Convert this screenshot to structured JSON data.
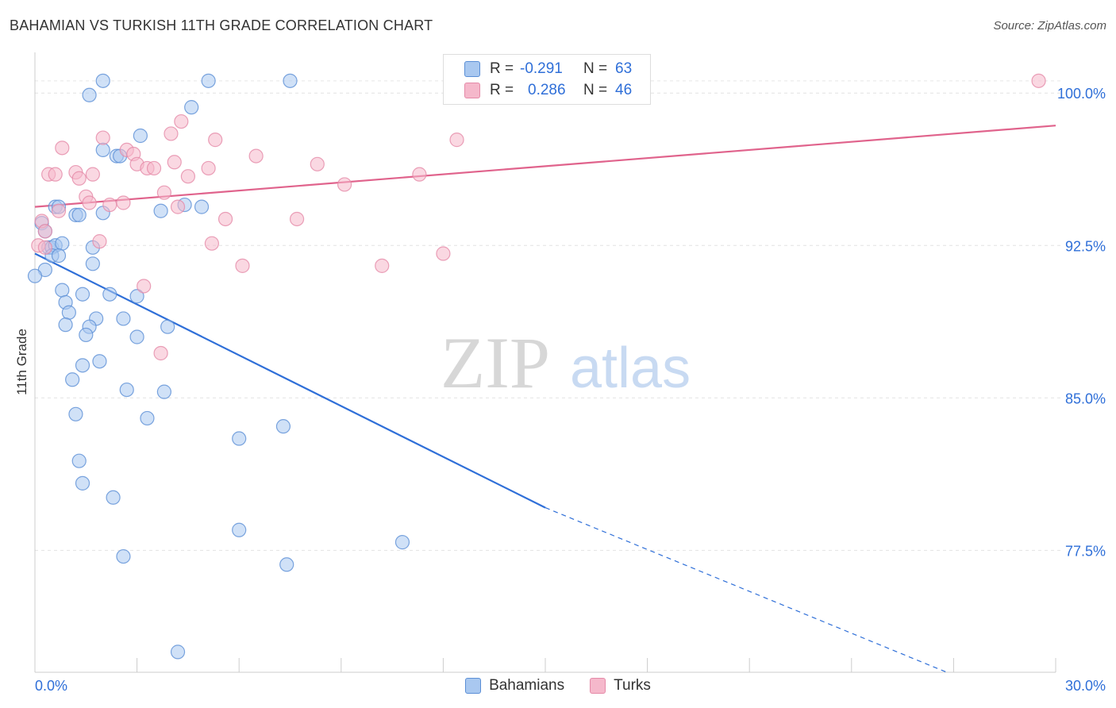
{
  "title": "BAHAMIAN VS TURKISH 11TH GRADE CORRELATION CHART",
  "source": "Source: ZipAtlas.com",
  "watermark": {
    "zip": "ZIP",
    "atlas": "atlas"
  },
  "colors": {
    "blue_fill": "#a9c8f0",
    "blue_stroke": "#5b8fd6",
    "blue_line": "#2f6fd8",
    "pink_fill": "#f5b8cb",
    "pink_stroke": "#e58aa8",
    "pink_line": "#e0638c",
    "value_text": "#2f6fd8"
  },
  "legend": {
    "rows": [
      {
        "r_label": "R =",
        "r_value": "-0.291",
        "n_label": "N =",
        "n_value": "63"
      },
      {
        "r_label": "R =",
        "r_value": "0.286",
        "n_label": "N =",
        "n_value": "46"
      }
    ],
    "series": [
      "Bahamians",
      "Turks"
    ]
  },
  "chart_data": {
    "type": "scatter",
    "title": "BAHAMIAN VS TURKISH 11TH GRADE CORRELATION CHART",
    "xlabel": "",
    "ylabel": "11th Grade",
    "xlim": [
      0,
      30
    ],
    "ylim": [
      71.5,
      102
    ],
    "x_tick_labels": [
      "0.0%",
      "30.0%"
    ],
    "y_ticks": [
      77.5,
      85.0,
      92.5,
      100.0
    ],
    "y_tick_labels": [
      "77.5%",
      "85.0%",
      "92.5%",
      "100.0%"
    ],
    "grid": true,
    "legend_position": "top-center",
    "series": [
      {
        "name": "Bahamians",
        "r": -0.291,
        "n": 63,
        "trend": {
          "x": [
            0,
            15
          ],
          "y": [
            92.1,
            79.6
          ],
          "dashed_to": [
            26.8,
            71.5
          ]
        },
        "points": [
          [
            2.0,
            100.6
          ],
          [
            5.1,
            100.6
          ],
          [
            7.5,
            100.6
          ],
          [
            1.6,
            99.9
          ],
          [
            4.6,
            99.3
          ],
          [
            3.1,
            97.9
          ],
          [
            2.0,
            97.2
          ],
          [
            2.4,
            96.9
          ],
          [
            2.5,
            96.9
          ],
          [
            0.6,
            94.4
          ],
          [
            0.7,
            94.4
          ],
          [
            3.7,
            94.2
          ],
          [
            4.4,
            94.5
          ],
          [
            4.9,
            94.4
          ],
          [
            1.2,
            94.0
          ],
          [
            1.3,
            94.0
          ],
          [
            2.0,
            94.1
          ],
          [
            0.2,
            93.6
          ],
          [
            0.3,
            93.2
          ],
          [
            0.4,
            92.4
          ],
          [
            0.5,
            92.4
          ],
          [
            0.6,
            92.5
          ],
          [
            0.8,
            92.6
          ],
          [
            0.5,
            92.0
          ],
          [
            0.7,
            92.0
          ],
          [
            1.7,
            92.4
          ],
          [
            1.7,
            91.6
          ],
          [
            0.3,
            91.3
          ],
          [
            0.0,
            91.0
          ],
          [
            0.8,
            90.3
          ],
          [
            1.4,
            90.1
          ],
          [
            2.2,
            90.1
          ],
          [
            3.0,
            90.0
          ],
          [
            0.9,
            89.7
          ],
          [
            1.0,
            89.2
          ],
          [
            1.8,
            88.9
          ],
          [
            2.6,
            88.9
          ],
          [
            0.9,
            88.6
          ],
          [
            1.6,
            88.5
          ],
          [
            3.9,
            88.5
          ],
          [
            1.5,
            88.1
          ],
          [
            3.0,
            88.0
          ],
          [
            1.9,
            86.8
          ],
          [
            1.4,
            86.6
          ],
          [
            1.1,
            85.9
          ],
          [
            2.7,
            85.4
          ],
          [
            3.8,
            85.3
          ],
          [
            1.2,
            84.2
          ],
          [
            3.3,
            84.0
          ],
          [
            7.3,
            83.6
          ],
          [
            6.0,
            83.0
          ],
          [
            1.3,
            81.9
          ],
          [
            1.4,
            80.8
          ],
          [
            2.3,
            80.1
          ],
          [
            6.0,
            78.5
          ],
          [
            10.8,
            77.9
          ],
          [
            2.6,
            77.2
          ],
          [
            7.4,
            76.8
          ],
          [
            4.2,
            72.5
          ]
        ]
      },
      {
        "name": "Turks",
        "r": 0.286,
        "n": 46,
        "trend": {
          "x": [
            0,
            30
          ],
          "y": [
            94.4,
            98.4
          ]
        },
        "points": [
          [
            12.3,
            100.6
          ],
          [
            29.5,
            100.6
          ],
          [
            4.3,
            98.6
          ],
          [
            4.0,
            98.0
          ],
          [
            2.0,
            97.8
          ],
          [
            5.3,
            97.7
          ],
          [
            12.4,
            97.7
          ],
          [
            0.8,
            97.3
          ],
          [
            2.7,
            97.2
          ],
          [
            2.9,
            97.0
          ],
          [
            6.5,
            96.9
          ],
          [
            4.1,
            96.6
          ],
          [
            3.0,
            96.5
          ],
          [
            8.3,
            96.5
          ],
          [
            3.3,
            96.3
          ],
          [
            5.1,
            96.3
          ],
          [
            3.5,
            96.3
          ],
          [
            1.2,
            96.1
          ],
          [
            0.4,
            96.0
          ],
          [
            0.6,
            96.0
          ],
          [
            1.7,
            96.0
          ],
          [
            11.3,
            96.0
          ],
          [
            1.3,
            95.8
          ],
          [
            4.5,
            95.9
          ],
          [
            9.1,
            95.5
          ],
          [
            3.8,
            95.1
          ],
          [
            1.5,
            94.9
          ],
          [
            1.6,
            94.6
          ],
          [
            2.2,
            94.5
          ],
          [
            2.6,
            94.6
          ],
          [
            4.2,
            94.4
          ],
          [
            0.7,
            94.2
          ],
          [
            0.2,
            93.7
          ],
          [
            5.6,
            93.8
          ],
          [
            7.7,
            93.8
          ],
          [
            0.3,
            93.2
          ],
          [
            1.9,
            92.7
          ],
          [
            5.2,
            92.6
          ],
          [
            0.1,
            92.5
          ],
          [
            0.3,
            92.4
          ],
          [
            12.0,
            92.1
          ],
          [
            6.1,
            91.5
          ],
          [
            10.2,
            91.5
          ],
          [
            3.2,
            90.5
          ],
          [
            3.7,
            87.2
          ]
        ]
      }
    ]
  }
}
